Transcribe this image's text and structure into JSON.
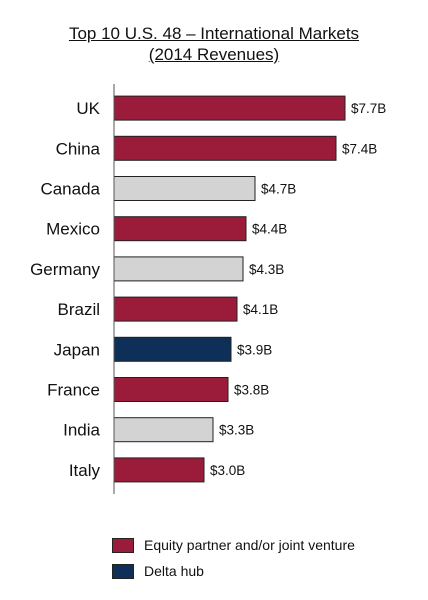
{
  "chart_data": {
    "type": "bar",
    "orientation": "horizontal",
    "title": [
      "Top 10 U.S. 48 – International Markets",
      "(2014 Revenues)"
    ],
    "categories": [
      "UK",
      "China",
      "Canada",
      "Mexico",
      "Germany",
      "Brazil",
      "Japan",
      "France",
      "India",
      "Italy"
    ],
    "values": [
      7.7,
      7.4,
      4.7,
      4.4,
      4.3,
      4.1,
      3.9,
      3.8,
      3.3,
      3.0
    ],
    "value_labels": [
      "$7.7B",
      "$7.4B",
      "$4.7B",
      "$4.4B",
      "$4.3B",
      "$4.1B",
      "$3.9B",
      "$3.8B",
      "$3.3B",
      "$3.0B"
    ],
    "bar_groups": [
      "equity",
      "equity",
      "other",
      "equity",
      "other",
      "equity",
      "hub",
      "equity",
      "other",
      "equity"
    ],
    "xlim": [
      0,
      7.7
    ],
    "grid": false,
    "legend": [
      {
        "key": "equity",
        "label": "Equity partner and/or joint venture",
        "color": "#9b1c3a"
      },
      {
        "key": "hub",
        "label": "Delta hub",
        "color": "#0e2f57"
      }
    ],
    "other_color": "#d3d3d3",
    "legend_position": "bottom-left"
  }
}
